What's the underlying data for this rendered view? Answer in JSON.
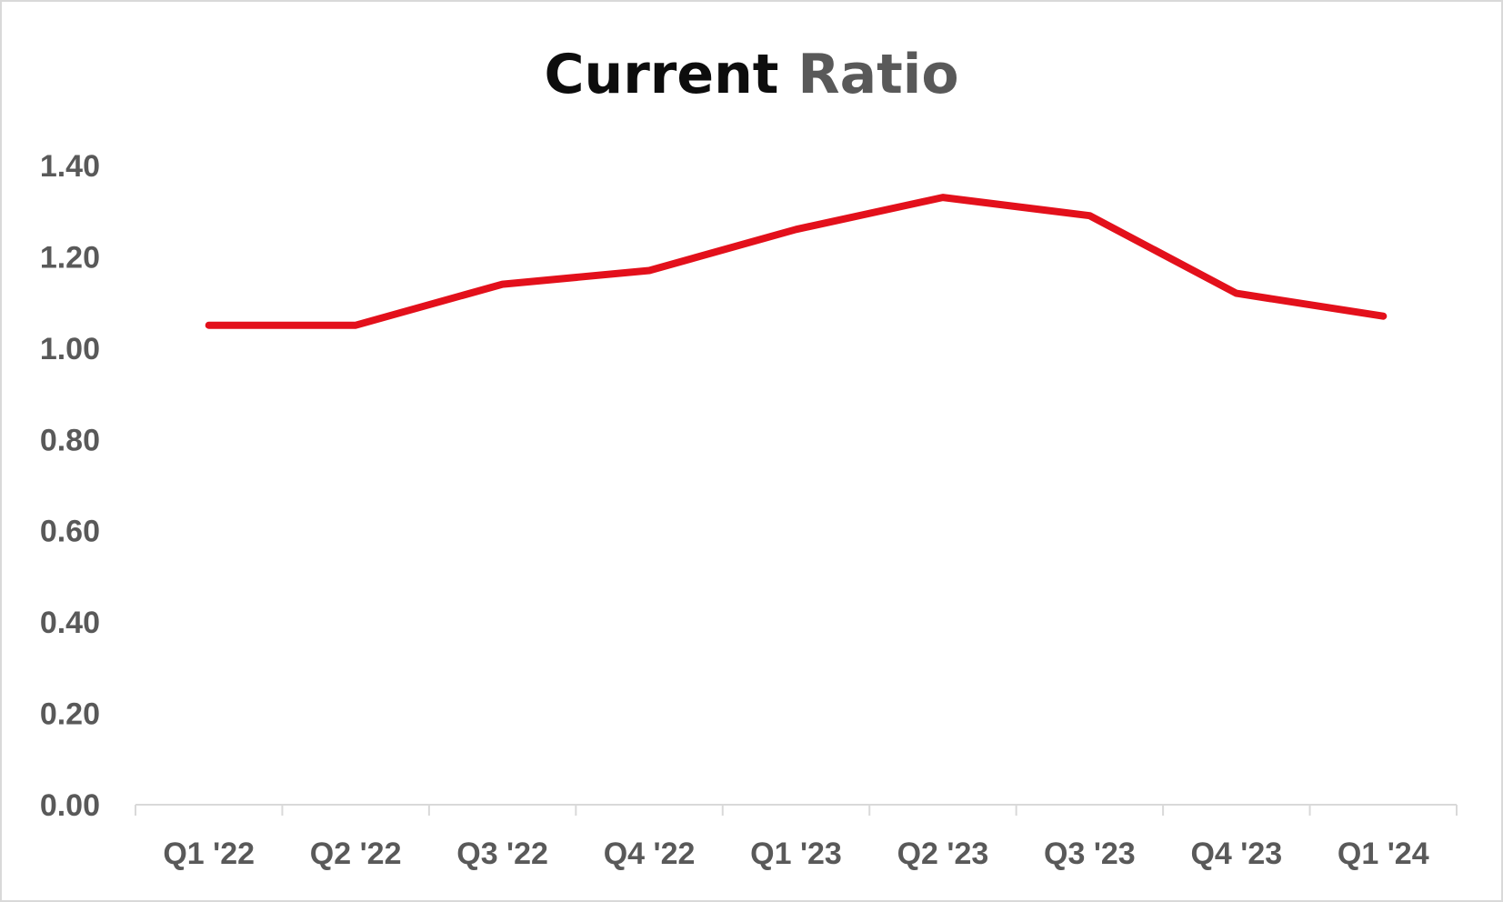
{
  "chart_data": {
    "type": "line",
    "title": "Current Ratio",
    "title_parts": [
      "Current",
      "Ratio"
    ],
    "xlabel": "",
    "ylabel": "",
    "categories": [
      "Q1 '22",
      "Q2 '22",
      "Q3 '22",
      "Q4 '22",
      "Q1 '23",
      "Q2 '23",
      "Q3 '23",
      "Q4 '23",
      "Q1 '24"
    ],
    "series": [
      {
        "values": [
          1.05,
          1.05,
          1.14,
          1.17,
          1.26,
          1.33,
          1.29,
          1.12,
          1.07
        ],
        "color": "#e3101b"
      }
    ],
    "ylim": [
      0,
      1.4
    ],
    "yticks": [
      "0.00",
      "0.20",
      "0.40",
      "0.60",
      "0.80",
      "1.00",
      "1.20",
      "1.40"
    ],
    "grid": false,
    "legend": "none"
  },
  "colors": {
    "line": "#e3101b",
    "axis": "#d9d9d9",
    "tick_text": "#595959",
    "title_primary": "#0d0d0d",
    "title_secondary": "#595959"
  }
}
